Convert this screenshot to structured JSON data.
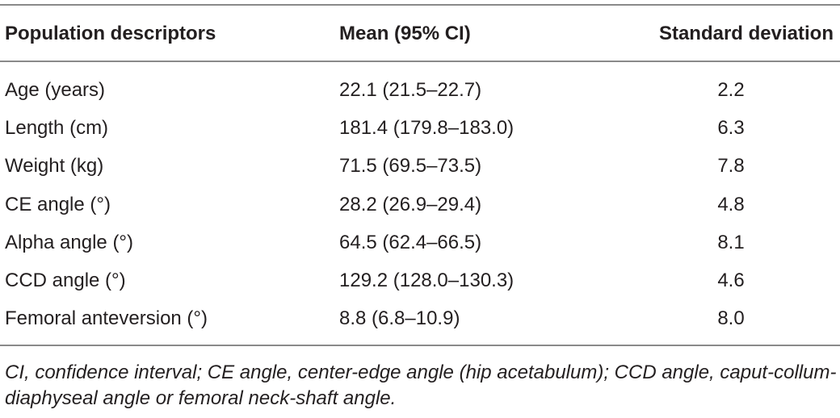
{
  "table": {
    "headers": [
      "Population descriptors",
      "Mean (95% CI)",
      "Standard deviation"
    ],
    "rows": [
      [
        "Age (years)",
        "22.1 (21.5–22.7)",
        "2.2"
      ],
      [
        "Length (cm)",
        "181.4 (179.8–183.0)",
        "6.3"
      ],
      [
        "Weight (kg)",
        "71.5 (69.5–73.5)",
        "7.8"
      ],
      [
        "CE angle (°)",
        "28.2 (26.9–29.4)",
        "4.8"
      ],
      [
        "Alpha angle (°)",
        "64.5 (62.4–66.5)",
        "8.1"
      ],
      [
        "CCD angle (°)",
        "129.2 (128.0–130.3)",
        "4.6"
      ],
      [
        "Femoral anteversion (°)",
        "8.8 (6.8–10.9)",
        "8.0"
      ]
    ],
    "footnote": "CI, confidence interval; CE angle, center-edge angle (hip acetabulum); CCD angle, caput-collum-diaphyseal angle or femoral neck-shaft angle."
  }
}
